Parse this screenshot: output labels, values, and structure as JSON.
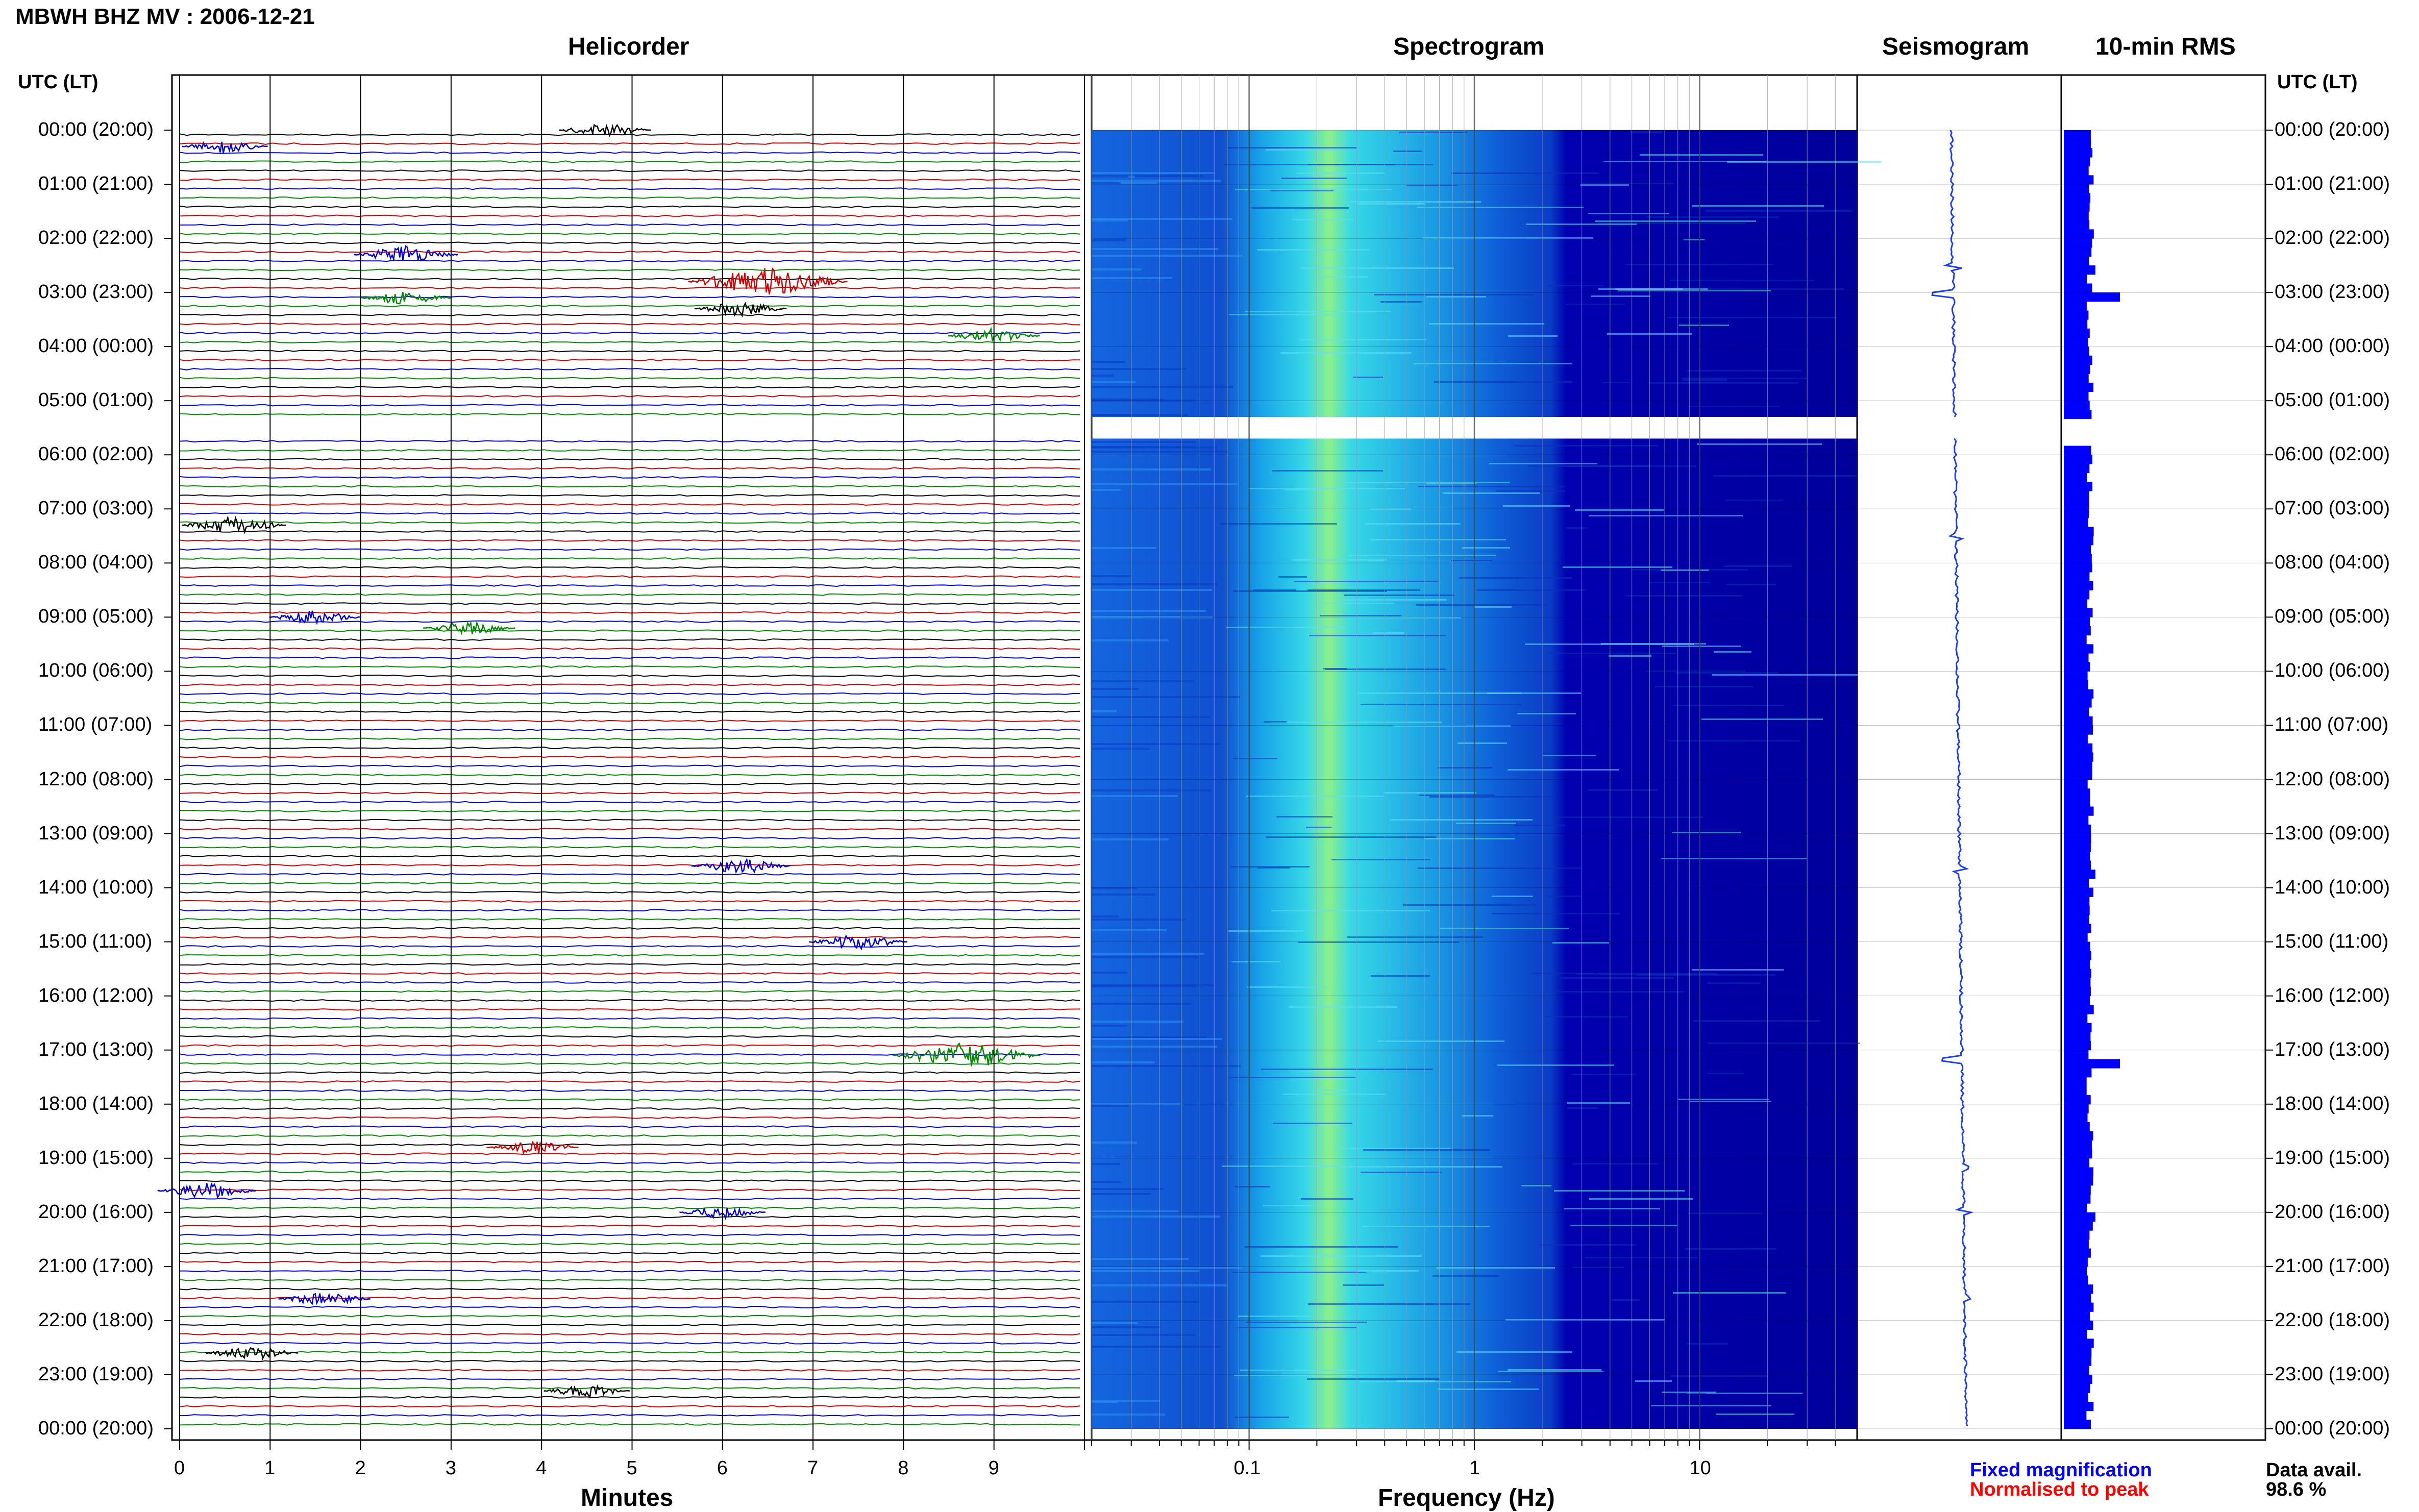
{
  "page": {
    "title": "MBWH BHZ MV : 2006-12-21",
    "utc_header": "UTC (LT)",
    "utc_header_right": "UTC (LT)"
  },
  "panels": {
    "helicorder": "Helicorder",
    "spectrogram": "Spectrogram",
    "seismogram": "Seismogram",
    "rms": "10-min RMS"
  },
  "axes": {
    "minutes_label": "Minutes",
    "frequency_label": "Frequency (Hz)",
    "minute_ticks": [
      "0",
      "1",
      "2",
      "3",
      "4",
      "5",
      "6",
      "7",
      "8",
      "9"
    ],
    "frequency_ticks": [
      "0.1",
      "1",
      "10"
    ]
  },
  "time_labels": [
    "00:00 (20:00)",
    "01:00 (21:00)",
    "02:00 (22:00)",
    "03:00 (23:00)",
    "04:00 (00:00)",
    "05:00 (01:00)",
    "06:00 (02:00)",
    "07:00 (03:00)",
    "08:00 (04:00)",
    "09:00 (05:00)",
    "10:00 (06:00)",
    "11:00 (07:00)",
    "12:00 (08:00)",
    "13:00 (09:00)",
    "14:00 (10:00)",
    "15:00 (11:00)",
    "16:00 (12:00)",
    "17:00 (13:00)",
    "18:00 (14:00)",
    "19:00 (15:00)",
    "20:00 (16:00)",
    "21:00 (17:00)",
    "22:00 (18:00)",
    "23:00 (19:00)",
    "00:00 (20:00)"
  ],
  "legend": {
    "fixed": "Fixed magnification",
    "normalised": "Normalised to peak",
    "fixed_color": "#0000ff",
    "normalised_color": "#ff0000",
    "data_avail_label": "Data avail.",
    "data_avail_value": "98.6 %"
  },
  "colors": {
    "trace_black": "#000000",
    "trace_red": "#cc0000",
    "trace_blue": "#0000cc",
    "trace_green": "#008800",
    "spectro_base": "#00008b",
    "rms_bar": "#0000ff"
  },
  "chart_data": {
    "type": "heatmap",
    "helicorder": {
      "x_range_minutes": [
        0,
        10
      ],
      "hours": 24,
      "lines_per_hour": 6,
      "trace_colors_cycle": [
        "black",
        "red",
        "blue",
        "green"
      ],
      "data_gap_hours": [
        5.3,
        5.6
      ],
      "events": [
        {
          "hour": 0.0,
          "minute": 4.7,
          "amp": 0.5,
          "color": "black"
        },
        {
          "hour": 0.3,
          "minute": 0.5,
          "amp": 0.4,
          "color": "blue"
        },
        {
          "hour": 2.3,
          "minute": 2.5,
          "amp": 0.7,
          "color": "blue"
        },
        {
          "hour": 2.8,
          "minute": 6.5,
          "amp": 1.6,
          "color": "red"
        },
        {
          "hour": 3.1,
          "minute": 2.5,
          "amp": 0.5,
          "color": "green"
        },
        {
          "hour": 3.3,
          "minute": 6.2,
          "amp": 0.5,
          "color": "black"
        },
        {
          "hour": 3.8,
          "minute": 9.0,
          "amp": 0.5,
          "color": "green"
        },
        {
          "hour": 7.3,
          "minute": 0.6,
          "amp": 0.7,
          "color": "black"
        },
        {
          "hour": 9.0,
          "minute": 1.5,
          "amp": 0.5,
          "color": "blue"
        },
        {
          "hour": 9.2,
          "minute": 3.2,
          "amp": 0.5,
          "color": "green"
        },
        {
          "hour": 13.6,
          "minute": 6.2,
          "amp": 0.6,
          "color": "blue"
        },
        {
          "hour": 15.0,
          "minute": 7.5,
          "amp": 0.6,
          "color": "blue"
        },
        {
          "hour": 17.1,
          "minute": 8.7,
          "amp": 1.4,
          "color": "green"
        },
        {
          "hour": 18.8,
          "minute": 3.9,
          "amp": 0.5,
          "color": "red"
        },
        {
          "hour": 19.6,
          "minute": 0.3,
          "amp": 0.6,
          "color": "blue"
        },
        {
          "hour": 20.0,
          "minute": 6.0,
          "amp": 0.4,
          "color": "blue"
        },
        {
          "hour": 21.6,
          "minute": 1.6,
          "amp": 0.5,
          "color": "blue"
        },
        {
          "hour": 22.6,
          "minute": 0.8,
          "amp": 0.5,
          "color": "black"
        },
        {
          "hour": 23.3,
          "minute": 4.5,
          "amp": 0.4,
          "color": "black"
        }
      ]
    },
    "spectrogram": {
      "x_scale": "log",
      "x_range_hz": [
        0.02,
        50
      ],
      "peak_band_hz": [
        0.2,
        0.35
      ],
      "gap_hours": [
        5.3,
        5.7
      ]
    },
    "rms": {
      "interval_minutes": 10,
      "spikes": [
        {
          "hour": 3.0,
          "value": 1.0
        },
        {
          "hour": 17.2,
          "value": 1.0
        },
        {
          "hour": 2.5,
          "value": 0.4
        },
        {
          "hour": 13.7,
          "value": 0.4
        },
        {
          "hour": 7.5,
          "value": 0.35
        },
        {
          "hour": 19.2,
          "value": 0.35
        },
        {
          "hour": 20.0,
          "value": 0.4
        },
        {
          "hour": 15.1,
          "value": 0.3
        }
      ]
    }
  }
}
